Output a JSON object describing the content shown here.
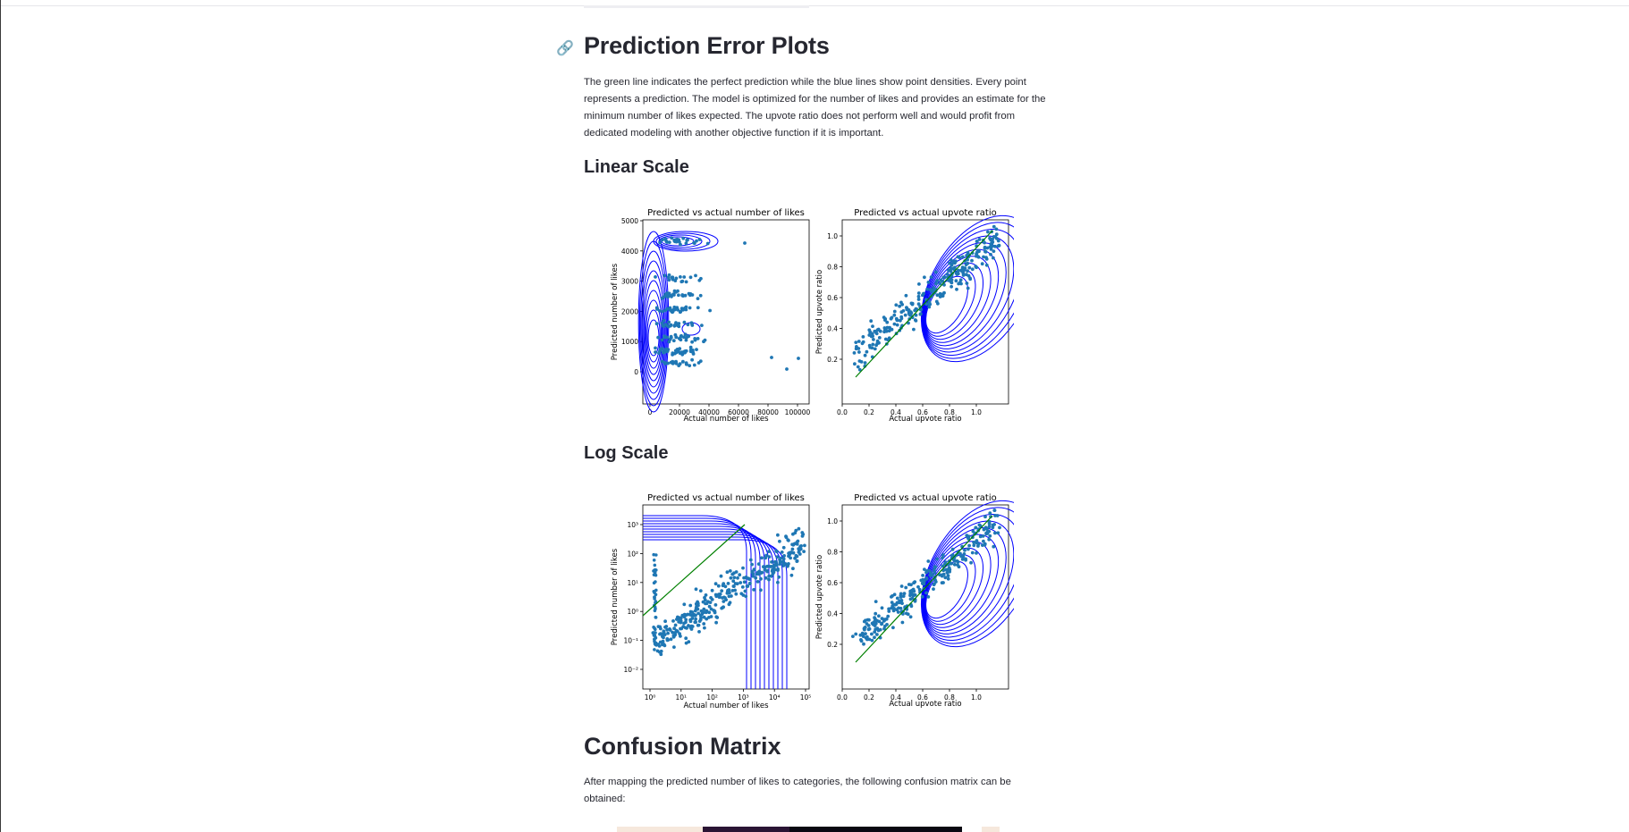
{
  "section": {
    "title": "Prediction Error Plots",
    "link_icon": "link-icon",
    "description": "The green line indicates the perfect prediction while the blue lines show point densities. Every point represents a prediction. The model is optimized for the number of likes and provides an estimate for the minimum number of likes expected. The upvote ratio does not perform well and would profit from dedicated modeling with another objective function if it is important."
  },
  "linear": {
    "heading": "Linear Scale",
    "likes_plot": {
      "title": "Predicted vs actual number of likes",
      "xlabel": "Actual number of likes",
      "ylabel": "Predicted number of likes",
      "xticks": [
        "0",
        "20000",
        "40000",
        "60000",
        "80000",
        "100000"
      ],
      "yticks": [
        "0",
        "1000",
        "2000",
        "3000",
        "4000",
        "5000"
      ]
    },
    "ratio_plot": {
      "title": "Predicted vs actual upvote ratio",
      "xlabel": "Actual upvote ratio",
      "ylabel": "Predicted upvote ratio",
      "xticks": [
        "0.0",
        "0.2",
        "0.4",
        "0.6",
        "0.8",
        "1.0"
      ],
      "yticks": [
        "0.2",
        "0.4",
        "0.6",
        "0.8",
        "1.0"
      ]
    }
  },
  "log": {
    "heading": "Log Scale",
    "likes_plot": {
      "title": "Predicted vs actual number of likes",
      "xlabel": "Actual number of likes",
      "ylabel": "Predicted number of likes",
      "xticks": [
        "10⁰",
        "10¹",
        "10²",
        "10³",
        "10⁴",
        "10⁵"
      ],
      "yticks": [
        "10⁻²",
        "10⁻¹",
        "10⁰",
        "10¹",
        "10²",
        "10³"
      ]
    },
    "ratio_plot": {
      "title": "Predicted vs actual upvote ratio",
      "xlabel": "Actual upvote ratio",
      "ylabel": "Predicted upvote ratio",
      "xticks": [
        "0.0",
        "0.2",
        "0.4",
        "0.6",
        "0.8",
        "1.0"
      ],
      "yticks": [
        "0.2",
        "0.4",
        "0.6",
        "0.8",
        "1.0"
      ]
    }
  },
  "confusion": {
    "heading": "Confusion Matrix",
    "description": "After mapping the predicted number of likes to categories, the following confusion matrix can be obtained:"
  },
  "colors": {
    "points": "#1f77b4",
    "density": "#0000ff",
    "perfect_line": "#008000"
  }
}
